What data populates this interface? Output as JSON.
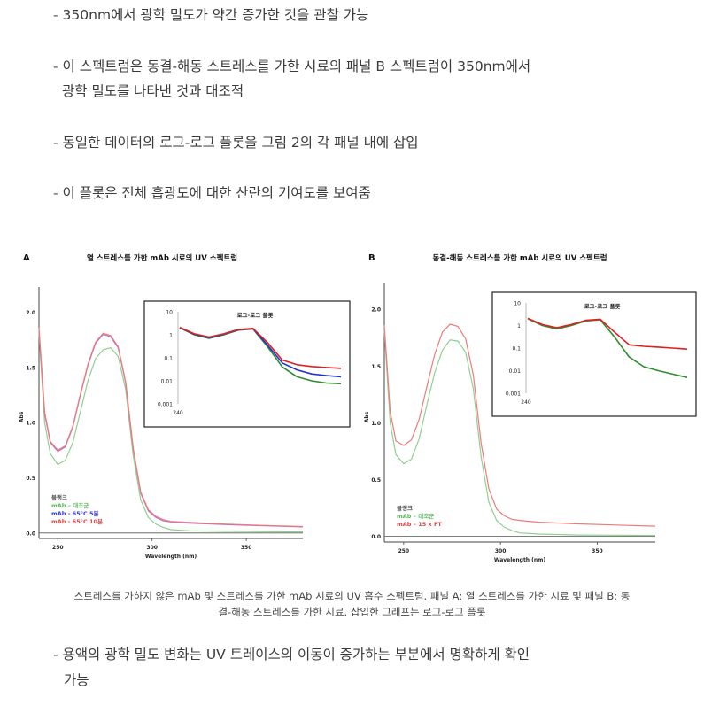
{
  "bullets_top": [
    "350nm에서 광학 밀도가 약간 증가한 것을 관찰 가능",
    "이 스펙트럼은 동결-해동 스트레스를 가한 시료의 패널 B 스펙트럼이 350nm에서",
    "광학 밀도를 나타낸 것과 대조적",
    "동일한 데이터의 로그-로그 플롯을 그림 2의 각 패널 내에 삽입",
    "이 플롯은 전체 흡광도에 대한 산란의 기여도를 보여줌"
  ],
  "dash": "-",
  "caption_lines": [
    "스트레스를 가하지 않은 mAb 및 스트레스를 가한 mAb 시료의 UV 흡수 스펙트럼. 패널 A: 열 스트레스를 가한 시료 및 패널 B: 동",
    "결-해동 스트레스를 가한 시료.  삽입한 그래프는 로그-로그 플롯"
  ],
  "bullets_bottom": [
    "용액의 광학 밀도 변화는 UV 트레이스의 이동이 증가하는 부분에서 명확하게 확인",
    "가능"
  ],
  "chart_data": [
    {
      "type": "line",
      "panel_label": "A",
      "title": "열 스트레스를 가한 mAb 시료의 UV 스펙트럼",
      "xlabel": "Wavelength (nm)",
      "ylabel": "Abs",
      "xlim": [
        240,
        380
      ],
      "ylim": [
        -0.05,
        2.15
      ],
      "xticks": [
        "250",
        "300",
        "350"
      ],
      "yticks": [
        "0.0",
        "0.5",
        "1.0",
        "1.5",
        "2.0"
      ],
      "legend": [
        "블랭크",
        "mAb – 대조군",
        "mAb - 65°C 5분",
        "mAb - 65°C 10분"
      ],
      "legend_colors": [
        "#555555",
        "#5cb85c",
        "#3b3bcf",
        "#e04848"
      ],
      "colors": {
        "blank": "#555555",
        "control": "#8fd08f",
        "s1": "#b070c8",
        "s2": "#f07a7a"
      },
      "series": [
        {
          "name": "블랭크",
          "x": [
            240,
            260,
            300,
            380
          ],
          "y": [
            0,
            0,
            0,
            0
          ]
        },
        {
          "name": "mAb – 대조군",
          "x": [
            240,
            243,
            246,
            250,
            254,
            258,
            262,
            266,
            270,
            274,
            278,
            282,
            286,
            290,
            294,
            298,
            302,
            306,
            310,
            320,
            340,
            360,
            380
          ],
          "y": [
            1.82,
            1.0,
            0.72,
            0.62,
            0.66,
            0.82,
            1.1,
            1.38,
            1.58,
            1.66,
            1.68,
            1.6,
            1.3,
            0.7,
            0.3,
            0.14,
            0.08,
            0.05,
            0.03,
            0.02,
            0.015,
            0.012,
            0.01
          ]
        },
        {
          "name": "mAb - 65°C 5분",
          "x": [
            240,
            243,
            246,
            250,
            254,
            258,
            262,
            266,
            270,
            274,
            278,
            282,
            286,
            290,
            294,
            298,
            302,
            306,
            310,
            320,
            340,
            360,
            380
          ],
          "y": [
            1.84,
            1.08,
            0.82,
            0.74,
            0.78,
            0.96,
            1.25,
            1.52,
            1.72,
            1.8,
            1.78,
            1.68,
            1.36,
            0.76,
            0.36,
            0.2,
            0.14,
            0.11,
            0.1,
            0.09,
            0.075,
            0.065,
            0.055
          ]
        },
        {
          "name": "mAb - 65°C 10분",
          "x": [
            240,
            243,
            246,
            250,
            254,
            258,
            262,
            266,
            270,
            274,
            278,
            282,
            286,
            290,
            294,
            298,
            302,
            306,
            310,
            320,
            340,
            360,
            380
          ],
          "y": [
            1.86,
            1.1,
            0.83,
            0.75,
            0.79,
            0.97,
            1.26,
            1.53,
            1.73,
            1.81,
            1.79,
            1.69,
            1.37,
            0.77,
            0.37,
            0.21,
            0.15,
            0.12,
            0.105,
            0.095,
            0.08,
            0.068,
            0.058
          ]
        }
      ],
      "inset": {
        "title": "로그-로그 플롯",
        "yticks": [
          "10",
          "1",
          "0.1",
          "0.01",
          "0.001"
        ],
        "xtick": "240",
        "curves": [
          {
            "color": "#2e8b2e",
            "y": [
              2.0,
              1.0,
              0.7,
              1.0,
              1.6,
              1.8,
              0.3,
              0.04,
              0.015,
              0.01,
              0.008,
              0.0075
            ]
          },
          {
            "color": "#2233cc",
            "y": [
              2.05,
              1.05,
              0.75,
              1.05,
              1.65,
              1.85,
              0.35,
              0.06,
              0.03,
              0.02,
              0.017,
              0.015
            ]
          },
          {
            "color": "#e02020",
            "y": [
              2.1,
              1.1,
              0.8,
              1.1,
              1.7,
              1.9,
              0.45,
              0.08,
              0.05,
              0.042,
              0.038,
              0.035
            ]
          }
        ]
      }
    },
    {
      "type": "line",
      "panel_label": "B",
      "title": "동결-해동 스트레스를 가한 mAb 시료의 UV 스펙트럼",
      "xlabel": "Wavelength (nm)",
      "ylabel": "Abs",
      "xlim": [
        240,
        380
      ],
      "ylim": [
        -0.05,
        2.15
      ],
      "xticks": [
        "250",
        "300",
        "350"
      ],
      "yticks": [
        "0.0",
        "0.5",
        "1.0",
        "1.5",
        "2.0"
      ],
      "legend": [
        "블랭크",
        "mAb – 대조군",
        "mAb – 15 x FT"
      ],
      "legend_colors": [
        "#555555",
        "#5cb85c",
        "#e04848"
      ],
      "colors": {
        "blank": "#555555",
        "control": "#8fd08f",
        "s1": "#f07a7a"
      },
      "series": [
        {
          "name": "블랭크",
          "x": [
            240,
            260,
            300,
            380
          ],
          "y": [
            0,
            0,
            0,
            0
          ]
        },
        {
          "name": "mAb – 대조군",
          "x": [
            240,
            243,
            246,
            250,
            254,
            258,
            262,
            266,
            270,
            274,
            278,
            282,
            286,
            290,
            294,
            298,
            302,
            306,
            310,
            320,
            340,
            360,
            380
          ],
          "y": [
            1.82,
            1.0,
            0.72,
            0.64,
            0.68,
            0.86,
            1.16,
            1.44,
            1.64,
            1.73,
            1.72,
            1.62,
            1.3,
            0.7,
            0.3,
            0.14,
            0.08,
            0.05,
            0.03,
            0.02,
            0.012,
            0.01,
            0.008
          ]
        },
        {
          "name": "mAb – 15 x FT",
          "x": [
            240,
            243,
            246,
            250,
            254,
            258,
            262,
            266,
            270,
            274,
            278,
            282,
            286,
            290,
            294,
            298,
            302,
            306,
            310,
            320,
            340,
            360,
            380
          ],
          "y": [
            1.86,
            1.1,
            0.84,
            0.8,
            0.85,
            1.03,
            1.32,
            1.6,
            1.8,
            1.87,
            1.85,
            1.74,
            1.42,
            0.82,
            0.42,
            0.24,
            0.18,
            0.15,
            0.14,
            0.125,
            0.11,
            0.1,
            0.09
          ]
        }
      ],
      "inset": {
        "title": "로그-로그 플롯",
        "yticks": [
          "10",
          "1",
          "0.1",
          "0.01",
          "0.001"
        ],
        "xtick": "240",
        "curves": [
          {
            "color": "#2e8b2e",
            "y": [
              2.0,
              1.0,
              0.7,
              1.0,
              1.6,
              1.8,
              0.3,
              0.04,
              0.015,
              0.01,
              0.007,
              0.005
            ]
          },
          {
            "color": "#e02020",
            "y": [
              2.1,
              1.1,
              0.8,
              1.1,
              1.7,
              1.9,
              0.5,
              0.14,
              0.12,
              0.11,
              0.1,
              0.09
            ]
          }
        ]
      }
    }
  ]
}
